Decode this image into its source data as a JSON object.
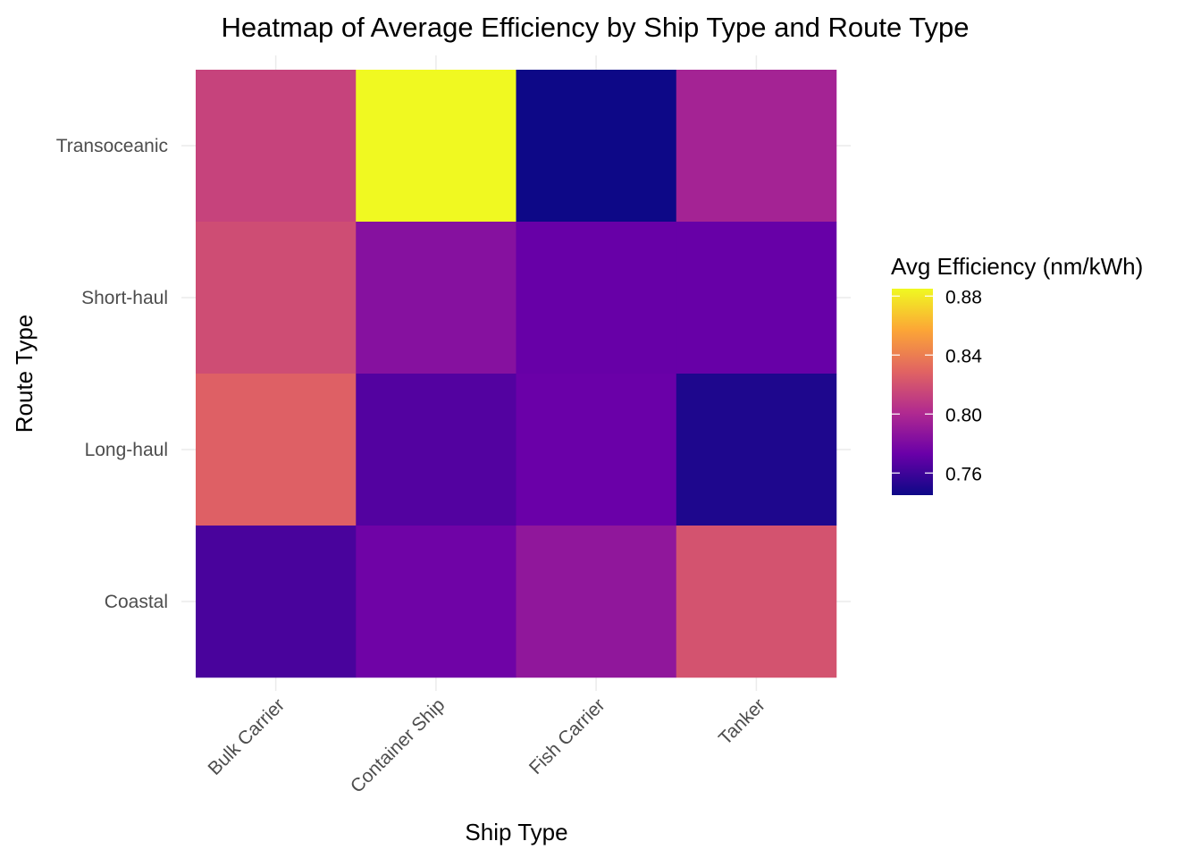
{
  "chart_data": {
    "type": "heatmap",
    "title": "Heatmap of Average Efficiency by Ship Type and Route Type",
    "xlabel": "Ship Type",
    "ylabel": "Route Type",
    "x_categories": [
      "Bulk Carrier",
      "Container Ship",
      "Fish Carrier",
      "Tanker"
    ],
    "y_categories": [
      "Coastal",
      "Long-haul",
      "Short-haul",
      "Transoceanic"
    ],
    "values": [
      {
        "x": "Bulk Carrier",
        "y": "Transoceanic",
        "value": 0.813
      },
      {
        "x": "Container Ship",
        "y": "Transoceanic",
        "value": 0.885
      },
      {
        "x": "Fish Carrier",
        "y": "Transoceanic",
        "value": 0.745
      },
      {
        "x": "Tanker",
        "y": "Transoceanic",
        "value": 0.796
      },
      {
        "x": "Bulk Carrier",
        "y": "Short-haul",
        "value": 0.818
      },
      {
        "x": "Container Ship",
        "y": "Short-haul",
        "value": 0.784
      },
      {
        "x": "Fish Carrier",
        "y": "Short-haul",
        "value": 0.772
      },
      {
        "x": "Tanker",
        "y": "Short-haul",
        "value": 0.772
      },
      {
        "x": "Bulk Carrier",
        "y": "Long-haul",
        "value": 0.827
      },
      {
        "x": "Container Ship",
        "y": "Long-haul",
        "value": 0.766
      },
      {
        "x": "Fish Carrier",
        "y": "Long-haul",
        "value": 0.773
      },
      {
        "x": "Tanker",
        "y": "Long-haul",
        "value": 0.75
      },
      {
        "x": "Bulk Carrier",
        "y": "Coastal",
        "value": 0.763
      },
      {
        "x": "Container Ship",
        "y": "Coastal",
        "value": 0.775
      },
      {
        "x": "Fish Carrier",
        "y": "Coastal",
        "value": 0.788
      },
      {
        "x": "Tanker",
        "y": "Coastal",
        "value": 0.821
      }
    ],
    "color_scale": {
      "name": "plasma",
      "min": 0.745,
      "max": 0.885,
      "colors": [
        "#0d0887",
        "#6a00a8",
        "#b12a90",
        "#e16462",
        "#fca636",
        "#f0f921"
      ]
    },
    "legend": {
      "title": "Avg Efficiency (nm/kWh)",
      "ticks": [
        "0.76",
        "0.80",
        "0.84",
        "0.88"
      ],
      "placement": "right"
    },
    "grid": true
  }
}
